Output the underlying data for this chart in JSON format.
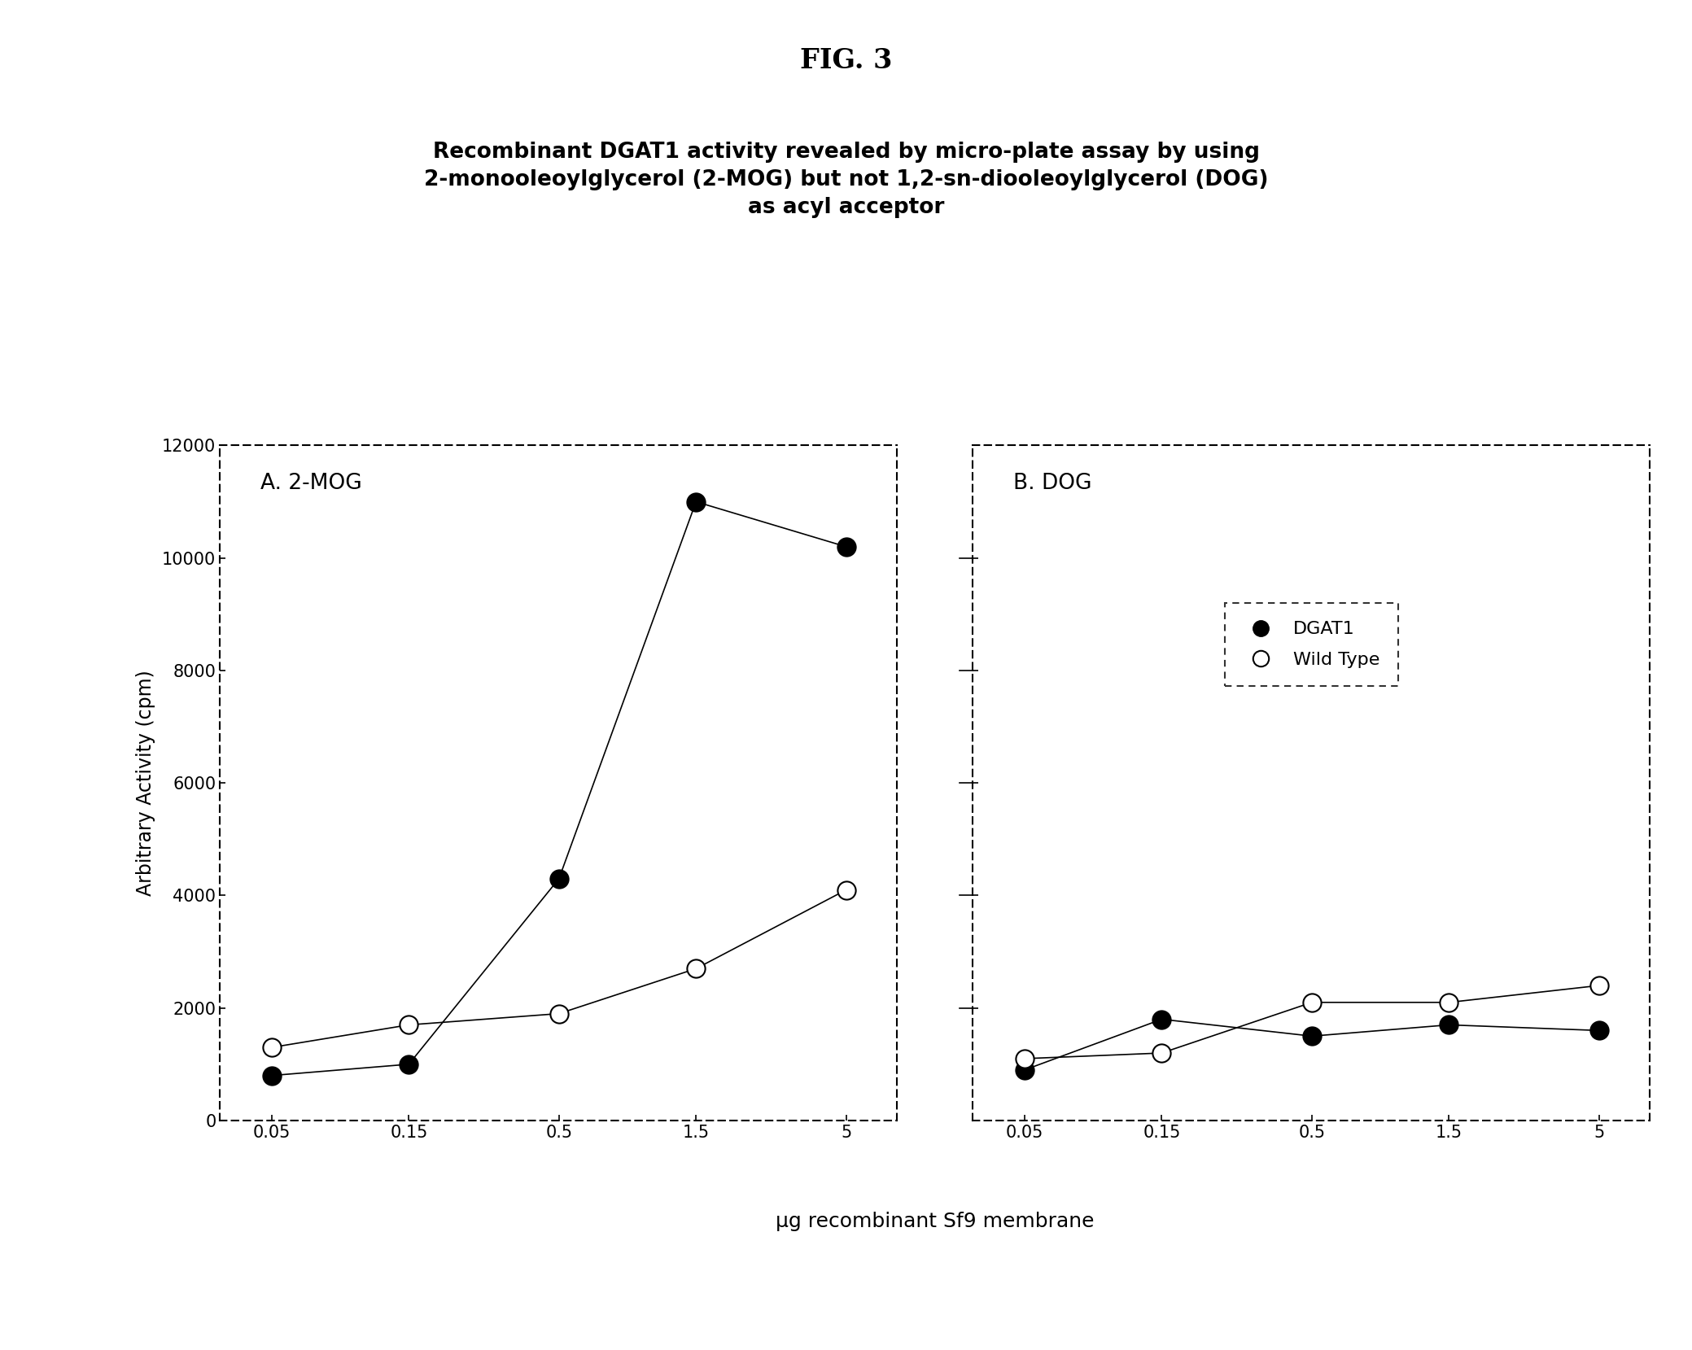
{
  "fig_title": "FIG. 3",
  "subtitle_line1": "Recombinant DGAT1 activity revealed by micro-plate assay by using",
  "subtitle_line2": "2-monooleoylglycerol (2-MOG) but not 1,2-sn-diooleoylglycerol (DOG)",
  "subtitle_line3": "as acyl acceptor",
  "xlabel": "μg recombinant Sf9 membrane",
  "ylabel": "Arbitrary Activity (cpm)",
  "panel_a_title": "A. 2-MOG",
  "panel_b_title": "B. DOG",
  "x_positions": [
    0.05,
    0.15,
    0.5,
    1.5,
    5.0
  ],
  "x_tick_labels": [
    "0.05",
    "0.15",
    "0.5",
    "1.5",
    "5"
  ],
  "ylim": [
    0,
    12000
  ],
  "yticks": [
    0,
    2000,
    4000,
    6000,
    8000,
    10000,
    12000
  ],
  "panel_a_dgat1": [
    800,
    1000,
    4300,
    11000,
    10200
  ],
  "panel_a_wildtype": [
    1300,
    1700,
    1900,
    2700,
    4100
  ],
  "panel_b_dgat1": [
    900,
    1800,
    1500,
    1700,
    1600
  ],
  "panel_b_wildtype": [
    1100,
    1200,
    2100,
    2100,
    2400
  ],
  "legend_labels": [
    "DGAT1",
    "Wild Type"
  ],
  "marker_size": 16,
  "line_width": 1.2,
  "background_color": "#ffffff",
  "plot_bg_color": "#ffffff"
}
